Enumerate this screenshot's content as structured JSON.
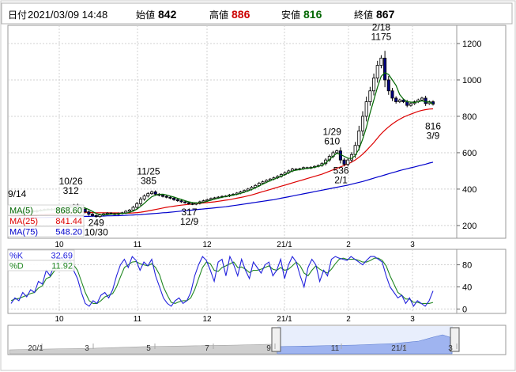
{
  "header": {
    "date_label": "日付",
    "date_value": "2021/03/09 14:48",
    "open_label": "始値",
    "open_value": "842",
    "high_label": "高値",
    "high_value": "886",
    "low_label": "安値",
    "low_value": "816",
    "close_label": "終値",
    "close_value": "867"
  },
  "colors": {
    "high": "#cc0000",
    "low": "#006600",
    "up_candle": "#ffffff",
    "down_candle": "#000080",
    "ma5": "#006600",
    "ma25": "#dd0000",
    "ma75": "#0000cc",
    "k_line": "#2222dd",
    "d_line": "#228822",
    "navigator_fill": "#9fb4f0"
  },
  "chart_data": [
    {
      "type": "candlestick",
      "name": "price",
      "y_ticks": [
        200,
        400,
        600,
        800,
        1000,
        1200
      ],
      "ylim": [
        130,
        1300
      ],
      "x_ticks": [
        "10",
        "11",
        "12",
        "21/1",
        "2",
        "3"
      ],
      "moving_averages": [
        {
          "label": "MA(5)",
          "value": "868.60",
          "color": "#006600"
        },
        {
          "label": "MA(25)",
          "value": "841.44",
          "color": "#dd0000"
        },
        {
          "label": "MA(75)",
          "value": "548.20",
          "color": "#0000cc"
        }
      ],
      "annotations": [
        {
          "text": "9/14",
          "value": 270
        },
        {
          "text": "10/26",
          "value": 312
        },
        {
          "text": "312",
          "value": 312
        },
        {
          "text": "249",
          "value": 249
        },
        {
          "text": "10/30",
          "value": 249
        },
        {
          "text": "11/25",
          "value": 385
        },
        {
          "text": "385",
          "value": 385
        },
        {
          "text": "317",
          "value": 317
        },
        {
          "text": "12/9",
          "value": 317
        },
        {
          "text": "1/29",
          "value": 610
        },
        {
          "text": "610",
          "value": 610
        },
        {
          "text": "536",
          "value": 536
        },
        {
          "text": "2/1",
          "value": 536
        },
        {
          "text": "2/18",
          "value": 1175
        },
        {
          "text": "1175",
          "value": 1175
        },
        {
          "text": "816",
          "value": 816
        },
        {
          "text": "3/9",
          "value": 816
        }
      ],
      "close_series": [
        270,
        272,
        268,
        275,
        278,
        280,
        276,
        282,
        285,
        288,
        290,
        286,
        292,
        295,
        298,
        300,
        305,
        312,
        300,
        290,
        275,
        262,
        255,
        249,
        258,
        264,
        268,
        265,
        262,
        266,
        270,
        278,
        285,
        300,
        320,
        345,
        362,
        375,
        385,
        372,
        366,
        360,
        355,
        350,
        342,
        336,
        330,
        325,
        320,
        317,
        322,
        330,
        336,
        342,
        348,
        352,
        356,
        360,
        362,
        368,
        372,
        378,
        385,
        392,
        400,
        410,
        420,
        432,
        440,
        448,
        455,
        462,
        470,
        480,
        490,
        500,
        510,
        508,
        512,
        518,
        515,
        520,
        525,
        530,
        540,
        560,
        580,
        600,
        610,
        560,
        536,
        560,
        590,
        640,
        720,
        800,
        880,
        940,
        1010,
        1080,
        1120,
        1000,
        940,
        900,
        880,
        890,
        880,
        860,
        870,
        880,
        890,
        900,
        870,
        880,
        867
      ],
      "ma5_series": [
        268,
        270,
        270,
        272,
        274,
        276,
        277,
        279,
        281,
        284,
        286,
        287,
        289,
        291,
        293,
        295,
        298,
        302,
        303,
        301,
        296,
        288,
        277,
        266,
        260,
        258,
        260,
        262,
        263,
        265,
        266,
        268,
        272,
        279,
        290,
        305,
        322,
        341,
        358,
        366,
        371,
        372,
        368,
        362,
        356,
        349,
        343,
        336,
        330,
        326,
        324,
        325,
        328,
        333,
        339,
        345,
        350,
        355,
        359,
        363,
        367,
        371,
        376,
        383,
        390,
        398,
        407,
        417,
        427,
        437,
        446,
        455,
        463,
        471,
        480,
        490,
        500,
        504,
        507,
        511,
        514,
        516,
        520,
        525,
        531,
        545,
        562,
        580,
        597,
        590,
        580,
        570,
        568,
        585,
        620,
        675,
        740,
        820,
        890,
        960,
        1020,
        1040,
        1030,
        1000,
        970,
        920,
        895,
        880,
        878,
        876,
        880,
        885,
        880,
        878,
        869
      ],
      "ma25_series": [
        250,
        251,
        252,
        253,
        254,
        256,
        257,
        258,
        259,
        260,
        262,
        263,
        264,
        265,
        267,
        268,
        269,
        271,
        272,
        273,
        273,
        272,
        271,
        270,
        270,
        270,
        270,
        269,
        269,
        269,
        268,
        268,
        268,
        269,
        271,
        273,
        276,
        280,
        284,
        288,
        292,
        296,
        300,
        303,
        306,
        309,
        312,
        314,
        316,
        318,
        320,
        322,
        324,
        326,
        328,
        330,
        333,
        336,
        339,
        342,
        346,
        350,
        354,
        358,
        363,
        368,
        374,
        380,
        386,
        392,
        398,
        404,
        410,
        416,
        422,
        428,
        434,
        440,
        446,
        452,
        458,
        464,
        470,
        476,
        482,
        490,
        498,
        506,
        514,
        522,
        530,
        538,
        548,
        560,
        575,
        592,
        612,
        634,
        656,
        680,
        704,
        724,
        742,
        758,
        772,
        784,
        795,
        804,
        812,
        820,
        827,
        833,
        837,
        840,
        841
      ],
      "ma75_series": [
        240,
        240,
        241,
        241,
        242,
        242,
        243,
        243,
        244,
        244,
        245,
        245,
        246,
        246,
        247,
        247,
        248,
        248,
        249,
        249,
        250,
        250,
        251,
        251,
        252,
        252,
        253,
        253,
        254,
        254,
        255,
        256,
        257,
        258,
        259,
        260,
        262,
        263,
        265,
        266,
        268,
        270,
        271,
        273,
        275,
        277,
        279,
        281,
        283,
        285,
        287,
        289,
        291,
        293,
        295,
        297,
        299,
        301,
        303,
        306,
        309,
        312,
        315,
        318,
        321,
        324,
        327,
        330,
        333,
        336,
        339,
        342,
        346,
        350,
        354,
        358,
        362,
        366,
        370,
        374,
        378,
        382,
        386,
        390,
        394,
        398,
        402,
        406,
        410,
        414,
        418,
        422,
        427,
        432,
        437,
        442,
        448,
        454,
        460,
        466,
        472,
        478,
        484,
        490,
        496,
        502,
        507,
        512,
        517,
        522,
        527,
        532,
        537,
        543,
        548
      ]
    },
    {
      "type": "line",
      "name": "stochastics",
      "y_ticks": [
        0,
        40,
        80
      ],
      "ylim": [
        -8,
        108
      ],
      "x_ticks": [
        "10",
        "11",
        "12",
        "21/1",
        "2",
        "3"
      ],
      "series": [
        {
          "name": "%K",
          "value": "32.69",
          "color": "#2222dd"
        },
        {
          "name": "%D",
          "value": "11.92",
          "color": "#228822"
        }
      ],
      "k_series": [
        10,
        20,
        15,
        30,
        22,
        35,
        30,
        50,
        45,
        70,
        60,
        78,
        85,
        95,
        80,
        90,
        70,
        55,
        30,
        10,
        5,
        15,
        10,
        25,
        30,
        20,
        35,
        60,
        80,
        90,
        75,
        95,
        88,
        70,
        85,
        78,
        90,
        60,
        40,
        20,
        10,
        5,
        15,
        20,
        10,
        15,
        30,
        60,
        80,
        95,
        88,
        70,
        50,
        85,
        90,
        60,
        95,
        80,
        60,
        90,
        70,
        55,
        85,
        75,
        65,
        80,
        85,
        60,
        70,
        90,
        55,
        80,
        95,
        85,
        60,
        40,
        75,
        90,
        80,
        50,
        70,
        60,
        90,
        95,
        92,
        90,
        88,
        95,
        90,
        85,
        80,
        88,
        95,
        95,
        90,
        85,
        60,
        40,
        30,
        20,
        25,
        10,
        20,
        5,
        15,
        10,
        5,
        15,
        32.69
      ],
      "d_series": [
        15,
        18,
        19,
        22,
        25,
        28,
        30,
        38,
        42,
        55,
        58,
        68,
        75,
        85,
        85,
        88,
        80,
        70,
        50,
        30,
        15,
        10,
        10,
        15,
        22,
        25,
        28,
        40,
        58,
        75,
        80,
        85,
        86,
        82,
        80,
        78,
        82,
        75,
        62,
        40,
        25,
        12,
        10,
        13,
        15,
        15,
        20,
        35,
        55,
        75,
        85,
        82,
        70,
        68,
        75,
        78,
        82,
        85,
        75,
        76,
        72,
        66,
        70,
        70,
        72,
        75,
        78,
        72,
        70,
        75,
        70,
        72,
        78,
        85,
        78,
        65,
        60,
        70,
        78,
        72,
        68,
        65,
        72,
        82,
        90,
        92,
        90,
        90,
        90,
        88,
        85,
        85,
        88,
        92,
        92,
        88,
        78,
        60,
        45,
        30,
        25,
        18,
        18,
        12,
        12,
        10,
        10,
        10,
        11.92
      ]
    },
    {
      "type": "area",
      "name": "navigator",
      "x_ticks": [
        "20/1",
        "3",
        "5",
        "7",
        "9",
        "11",
        "21/1",
        "3"
      ]
    }
  ]
}
